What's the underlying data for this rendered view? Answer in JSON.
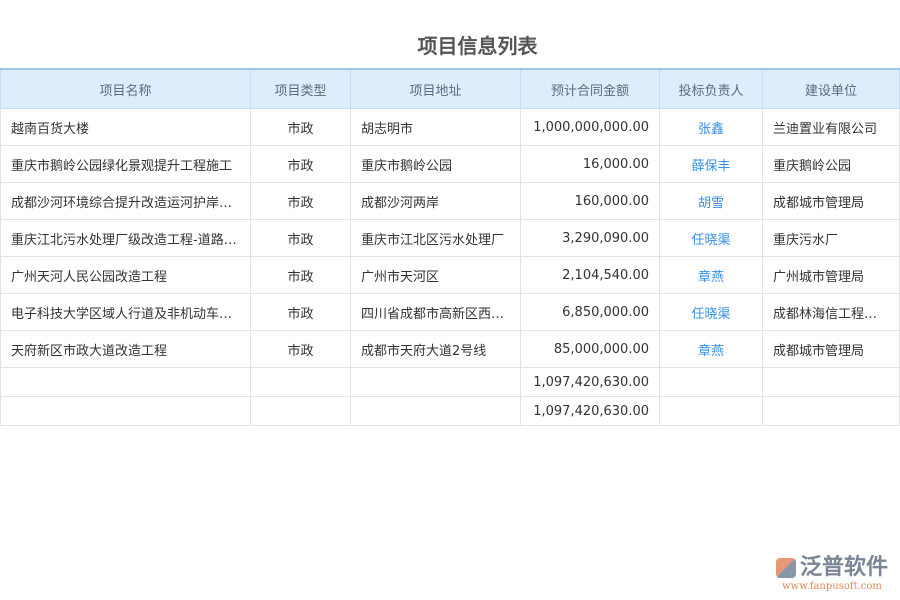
{
  "title": "项目信息列表",
  "columns": [
    "项目名称",
    "项目类型",
    "项目地址",
    "预计合同金额",
    "投标负责人",
    "建设单位"
  ],
  "rows": [
    [
      "越南百货大楼",
      "市政",
      "胡志明市",
      "1,000,000,000.00",
      "张鑫",
      "兰迪置业有限公司"
    ],
    [
      "重庆市鹅岭公园绿化景观提升工程施工",
      "市政",
      "重庆市鹅岭公园",
      "16,000.00",
      "薛保丰",
      "重庆鹅岭公园"
    ],
    [
      "成都沙河环境综合提升改造运河护岸…",
      "市政",
      "成都沙河两岸",
      "160,000.00",
      "胡雪",
      "成都城市管理局"
    ],
    [
      "重庆江北污水处理厂级改造工程-道路…",
      "市政",
      "重庆市江北区污水处理厂",
      "3,290,090.00",
      "任晓渠",
      "重庆污水厂"
    ],
    [
      "广州天河人民公园改造工程",
      "市政",
      "广州市天河区",
      "2,104,540.00",
      "章燕",
      "广州城市管理局"
    ],
    [
      "电子科技大学区域人行道及非机动车…",
      "市政",
      "四川省成都市高新区西…",
      "6,850,000.00",
      "任晓渠",
      "成都林海信工程…"
    ],
    [
      "天府新区市政大道改造工程",
      "市政",
      "成都市天府大道2号线",
      "85,000,000.00",
      "章燕",
      "成都城市管理局"
    ]
  ],
  "totals": [
    "1,097,420,630.00",
    "1,097,420,630.00"
  ],
  "logo": {
    "brand": "泛普软件",
    "url": "www.fanpusoft.com"
  }
}
